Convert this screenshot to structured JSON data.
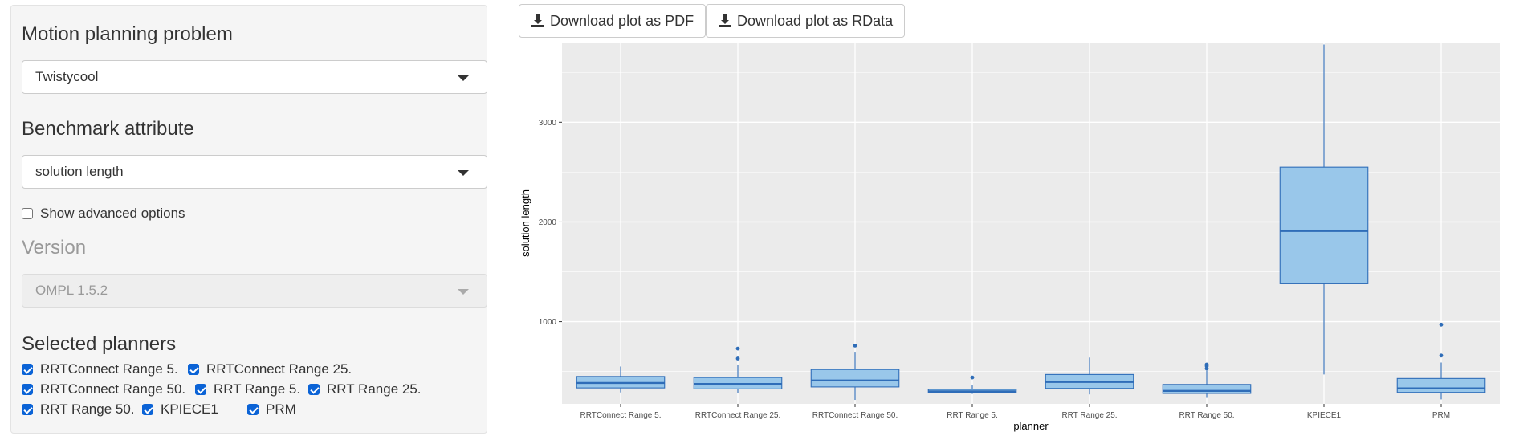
{
  "sidebar": {
    "problem_label": "Motion planning problem",
    "problem_value": "Twistycool",
    "attribute_label": "Benchmark attribute",
    "attribute_value": "solution length",
    "advanced_label": "Show advanced options",
    "version_label": "Version",
    "version_value": "OMPL 1.5.2",
    "planners_label": "Selected planners",
    "planners": [
      {
        "label": "RRTConnect Range 5.",
        "checked": true
      },
      {
        "label": "RRTConnect Range 25.",
        "checked": true
      },
      {
        "label": "RRTConnect Range 50.",
        "checked": true
      },
      {
        "label": "RRT Range 5.",
        "checked": true
      },
      {
        "label": "RRT Range 25.",
        "checked": true
      },
      {
        "label": "RRT Range 50.",
        "checked": true
      },
      {
        "label": "KPIECE1",
        "checked": true
      },
      {
        "label": "PRM",
        "checked": true
      }
    ]
  },
  "toolbar": {
    "pdf_label": "Download plot as PDF",
    "rdata_label": "Download plot as RData"
  },
  "colors": {
    "panel_bg": "#ebebeb",
    "box_fill": "#99c7ea",
    "box_line": "#2f6db8"
  },
  "chart_data": {
    "type": "boxplot",
    "xlabel": "planner",
    "ylabel": "solution length",
    "ylim": [
      175,
      3800
    ],
    "yticks": [
      1000,
      2000,
      3000
    ],
    "grid": true,
    "categories": [
      "RRTConnect Range 5.",
      "RRTConnect Range 25.",
      "RRTConnect Range 50.",
      "RRT Range 5.",
      "RRT Range 25.",
      "RRT Range 50.",
      "KPIECE1",
      "PRM"
    ],
    "boxes": [
      {
        "low": 290,
        "q1": 335,
        "median": 385,
        "q3": 450,
        "high": 550,
        "outliers": []
      },
      {
        "low": 280,
        "q1": 325,
        "median": 375,
        "q3": 440,
        "high": 570,
        "outliers": [
          630,
          730
        ]
      },
      {
        "low": 215,
        "q1": 345,
        "median": 410,
        "q3": 520,
        "high": 690,
        "outliers": [
          760
        ]
      },
      {
        "low": 275,
        "q1": 290,
        "median": 300,
        "q3": 320,
        "high": 360,
        "outliers": [
          440
        ]
      },
      {
        "low": 270,
        "q1": 330,
        "median": 395,
        "q3": 470,
        "high": 640,
        "outliers": []
      },
      {
        "low": 235,
        "q1": 280,
        "median": 305,
        "q3": 370,
        "high": 510,
        "outliers": [
          530,
          555,
          570
        ]
      },
      {
        "low": 470,
        "q1": 1380,
        "median": 1910,
        "q3": 2550,
        "high": 3780,
        "outliers": []
      },
      {
        "low": 220,
        "q1": 290,
        "median": 330,
        "q3": 430,
        "high": 590,
        "outliers": [
          660,
          970
        ]
      }
    ]
  }
}
